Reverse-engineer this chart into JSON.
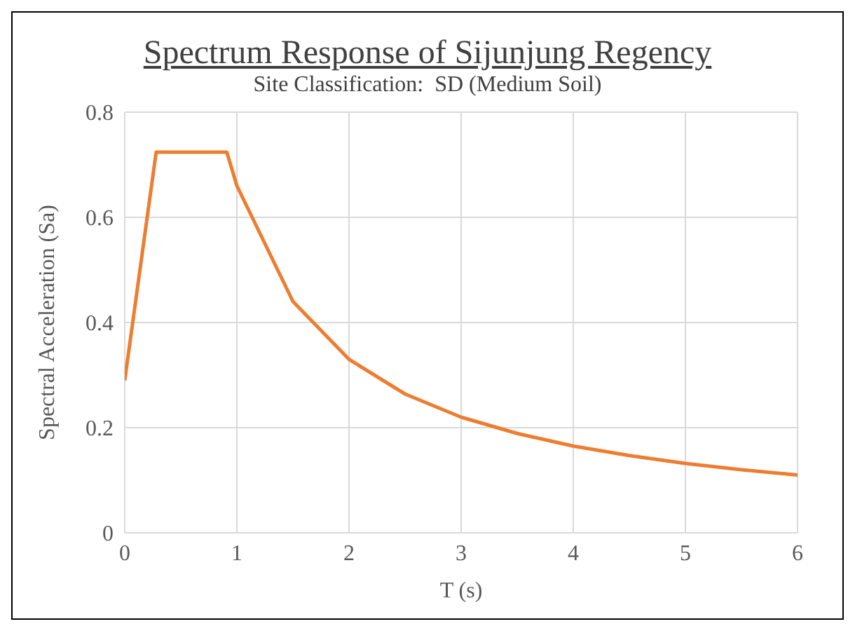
{
  "chart_data": {
    "type": "line",
    "title": "Spectrum Response of Sijunjung Regency",
    "subtitle": "Site Classification:  SD (Medium Soil)",
    "xlabel": "T (s)",
    "ylabel": "Spectral Acceleration (Sa)",
    "series": [
      {
        "color": "#ed7d31",
        "x": [
          0,
          0.28,
          0.91,
          1,
          1.5,
          2,
          2.5,
          3,
          3.5,
          4,
          4.5,
          5,
          5.5,
          6
        ],
        "values": [
          0.29,
          0.724,
          0.724,
          0.66,
          0.44,
          0.33,
          0.264,
          0.22,
          0.189,
          0.165,
          0.147,
          0.132,
          0.12,
          0.11
        ]
      }
    ],
    "xlim": [
      0,
      6
    ],
    "xticks": [
      0,
      1,
      2,
      3,
      4,
      5,
      6
    ],
    "ylim": [
      0,
      0.8
    ],
    "yticks": [
      0,
      {
        "value": 0.2,
        "label": "0.2"
      },
      {
        "value": 0.4,
        "label": "0.4"
      },
      {
        "value": 0.6,
        "label": "0.6"
      },
      {
        "value": 0.8,
        "label": "0.8"
      }
    ],
    "grid": true,
    "legend": false,
    "marker": "none",
    "line_style": "solid"
  }
}
